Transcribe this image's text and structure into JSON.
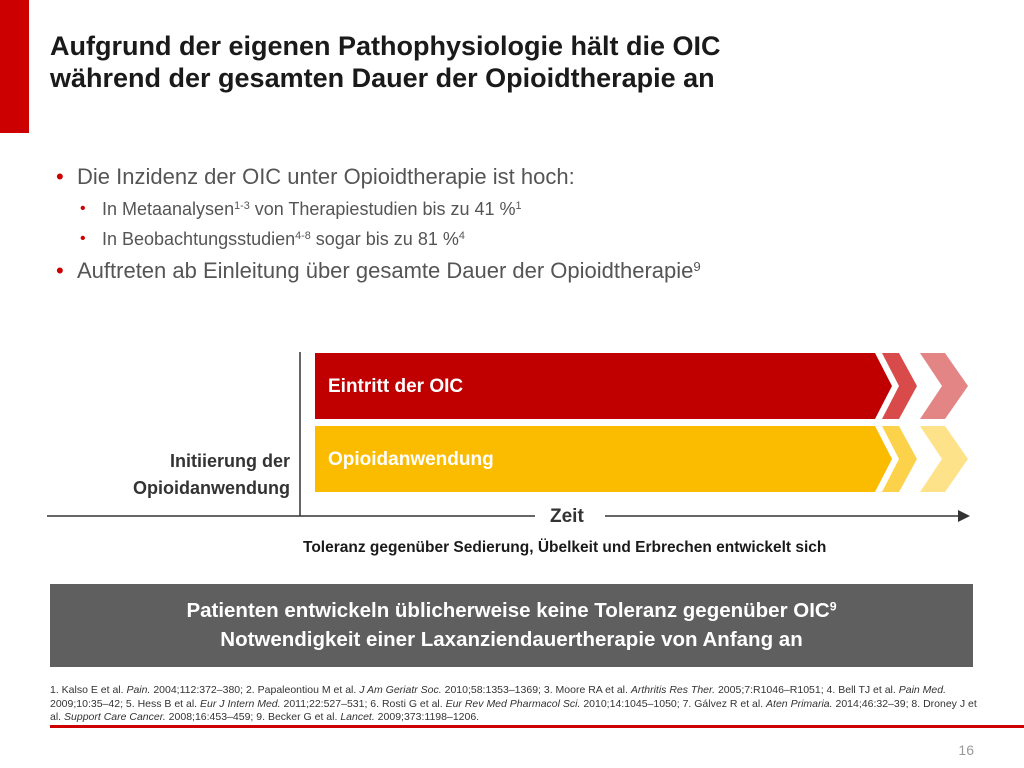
{
  "title": {
    "line1": "Aufgrund der eigenen Pathophysiologie hält die OIC",
    "line2": "während der gesamten Dauer der Opioidtherapie an"
  },
  "bullets": {
    "b1": {
      "text": "Die Inzidenz der OIC unter Opioidtherapie ist hoch:"
    },
    "b1a": {
      "pre": "In Metaanalysen",
      "sup1": "1-3",
      "mid": " von Therapiestudien bis zu 41 %",
      "sup2": "1"
    },
    "b1b": {
      "pre": "In Beobachtungsstudien",
      "sup1": "4-8",
      "mid": " sogar bis zu 81 %",
      "sup2": "4"
    },
    "b2": {
      "text": "Auftreten ab Einleitung über gesamte Dauer der Opioidtherapie",
      "sup": "9"
    }
  },
  "timeline": {
    "bar_top_label": "Eintritt der OIC",
    "bar_bottom_label": "Opioidanwendung",
    "init_line1": "Initiierung der",
    "init_line2": "Opioidanwendung",
    "axis_label": "Zeit",
    "tolerance_note": "Toleranz gegenüber Sedierung, Übelkeit und Erbrechen entwickelt sich",
    "colors": {
      "red": "#c00000",
      "red_mid": "#d94a4a",
      "red_light": "#e38585",
      "yellow": "#fbbc00",
      "yellow_mid": "#fcd24a",
      "yellow_light": "#fde28a"
    }
  },
  "callout": {
    "line1": "Patienten entwickeln üblicherweise keine Toleranz gegenüber OIC",
    "line1_sup": "9",
    "line2": "Notwendigkeit einer Laxanziendauertherapie von Anfang an"
  },
  "references": {
    "r1_pre": "1. Kalso E et al. ",
    "r1_j": "Pain.",
    "r1_post": " 2004;112:372–380; 2. Papaleontiou M et al. ",
    "r2_j": "J Am Geriatr Soc.",
    "r2_post": " 2010;58:1353–1369; 3. Moore RA et al. ",
    "r3_j": "Arthritis Res Ther.",
    "r3_post": " 2005;7:R1046–R1051; 4. Bell TJ et al. ",
    "r4_j": "Pain Med.",
    "r4_post": " 2009;10:35–42; 5. Hess B et al. ",
    "r5_j": "Eur J Intern Med.",
    "r5_post": " 2011;22:527–531; 6. Rosti G et al. ",
    "r6_j": "Eur Rev Med Pharmacol Sci.",
    "r6_post": " 2010;14:1045–1050; 7. Gálvez R et al. ",
    "r7_j": "Aten Primaria.",
    "r7_post": " 2014;46:32–39; 8. Droney J et al. ",
    "r8_j": "Support Care Cancer.",
    "r8_post": " 2008;16:453–459; 9. Becker G et al. ",
    "r9_j": "Lancet.",
    "r9_post": " 2009;373:1198–1206."
  },
  "page_number": "16",
  "accent_color": "#cc0000"
}
